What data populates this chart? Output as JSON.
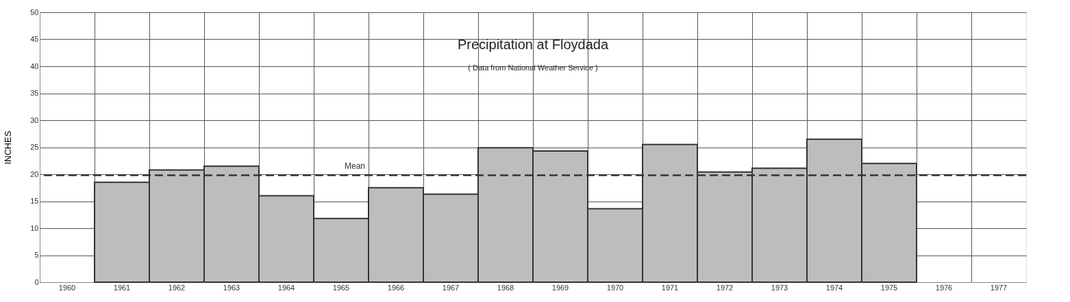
{
  "chart_data": {
    "type": "bar",
    "title": "Precipitation at Floydada",
    "subtitle": "( Data from National Weather Service )",
    "ylabel": "INCHES",
    "categories": [
      "1960",
      "1961",
      "1962",
      "1963",
      "1964",
      "1965",
      "1966",
      "1967",
      "1968",
      "1969",
      "1970",
      "1971",
      "1972",
      "1973",
      "1974",
      "1975",
      "1976",
      "1977"
    ],
    "values": [
      null,
      18.5,
      20.8,
      21.5,
      16.0,
      11.8,
      17.5,
      16.3,
      24.9,
      24.3,
      13.6,
      25.5,
      20.4,
      21.1,
      26.5,
      22.0,
      null,
      null
    ],
    "color": "#bdbdbd",
    "ylim": [
      0,
      50
    ],
    "yticks": [
      0,
      5,
      10,
      15,
      20,
      25,
      30,
      35,
      40,
      45,
      50
    ],
    "ref_lines": [
      {
        "axis": "y",
        "value": 19.8,
        "label": "Mean",
        "line_style": "dashed",
        "color": "#333333"
      }
    ],
    "grid": true
  }
}
